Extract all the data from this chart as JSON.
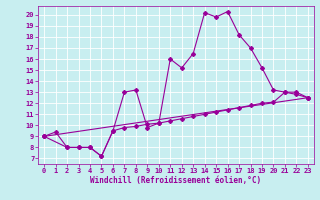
{
  "xlabel": "Windchill (Refroidissement éolien,°C)",
  "background_color": "#c8eef0",
  "line_color": "#990099",
  "xlim": [
    -0.5,
    23.5
  ],
  "ylim": [
    6.5,
    20.8
  ],
  "xticks": [
    0,
    1,
    2,
    3,
    4,
    5,
    6,
    7,
    8,
    9,
    10,
    11,
    12,
    13,
    14,
    15,
    16,
    17,
    18,
    19,
    20,
    21,
    22,
    23
  ],
  "yticks": [
    7,
    8,
    9,
    10,
    11,
    12,
    13,
    14,
    15,
    16,
    17,
    18,
    19,
    20
  ],
  "line1_x": [
    0,
    1,
    2,
    3,
    4,
    5,
    6,
    7,
    8,
    9,
    10,
    11,
    12,
    13,
    14,
    15,
    16,
    17,
    18,
    19,
    20,
    21,
    22,
    23
  ],
  "line1_y": [
    9.0,
    9.4,
    8.0,
    8.0,
    8.0,
    7.2,
    9.5,
    13.0,
    13.2,
    9.8,
    10.2,
    16.0,
    15.2,
    16.5,
    20.2,
    19.8,
    20.3,
    18.2,
    17.0,
    15.2,
    13.2,
    13.0,
    12.8,
    12.5
  ],
  "line2_x": [
    0,
    2,
    3,
    4,
    5,
    6,
    7,
    8,
    9,
    10,
    11,
    12,
    13,
    14,
    15,
    16,
    17,
    18,
    19,
    20,
    21,
    22,
    23
  ],
  "line2_y": [
    9.0,
    8.0,
    8.0,
    8.0,
    7.2,
    9.5,
    9.8,
    9.9,
    10.1,
    10.2,
    10.4,
    10.6,
    10.8,
    11.0,
    11.2,
    11.4,
    11.6,
    11.8,
    12.0,
    12.1,
    13.0,
    13.0,
    12.5
  ],
  "line3_x": [
    0,
    23
  ],
  "line3_y": [
    9.0,
    12.5
  ]
}
